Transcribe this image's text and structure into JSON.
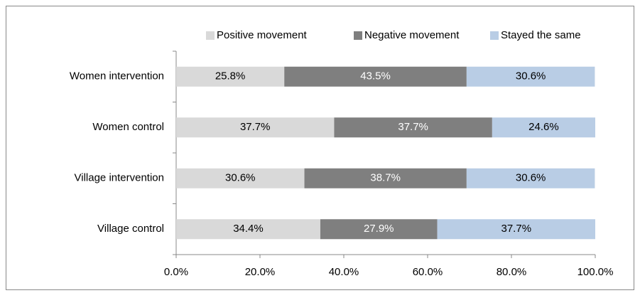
{
  "chart_data": {
    "type": "stacked_barh",
    "categories": [
      "Women intervention",
      "Women control",
      "Village intervention",
      "Village control"
    ],
    "series": [
      {
        "name": "Positive movement",
        "color": "#d9d9d9",
        "label_color": "#000000",
        "values": [
          25.8,
          37.7,
          30.6,
          34.4
        ],
        "value_labels": [
          "25.8%",
          "37.7%",
          "30.6%",
          "34.4%"
        ]
      },
      {
        "name": "Negative movement",
        "color": "#7f7f7f",
        "label_color": "#ffffff",
        "values": [
          43.5,
          37.7,
          38.7,
          27.9
        ],
        "value_labels": [
          "43.5%",
          "37.7%",
          "38.7%",
          "27.9%"
        ]
      },
      {
        "name": "Stayed the same",
        "color": "#b9cde5",
        "label_color": "#000000",
        "values": [
          30.6,
          24.6,
          30.6,
          37.7
        ],
        "value_labels": [
          "30.6%",
          "24.6%",
          "30.6%",
          "37.7%"
        ]
      }
    ],
    "xlim": [
      0,
      100
    ],
    "xticks": [
      {
        "value": 0,
        "label": "0.0%"
      },
      {
        "value": 20,
        "label": "20.0%"
      },
      {
        "value": 40,
        "label": "40.0%"
      },
      {
        "value": 60,
        "label": "60.0%"
      },
      {
        "value": 80,
        "label": "80.0%"
      },
      {
        "value": 100,
        "label": "100.0%"
      }
    ],
    "legend": "top"
  }
}
